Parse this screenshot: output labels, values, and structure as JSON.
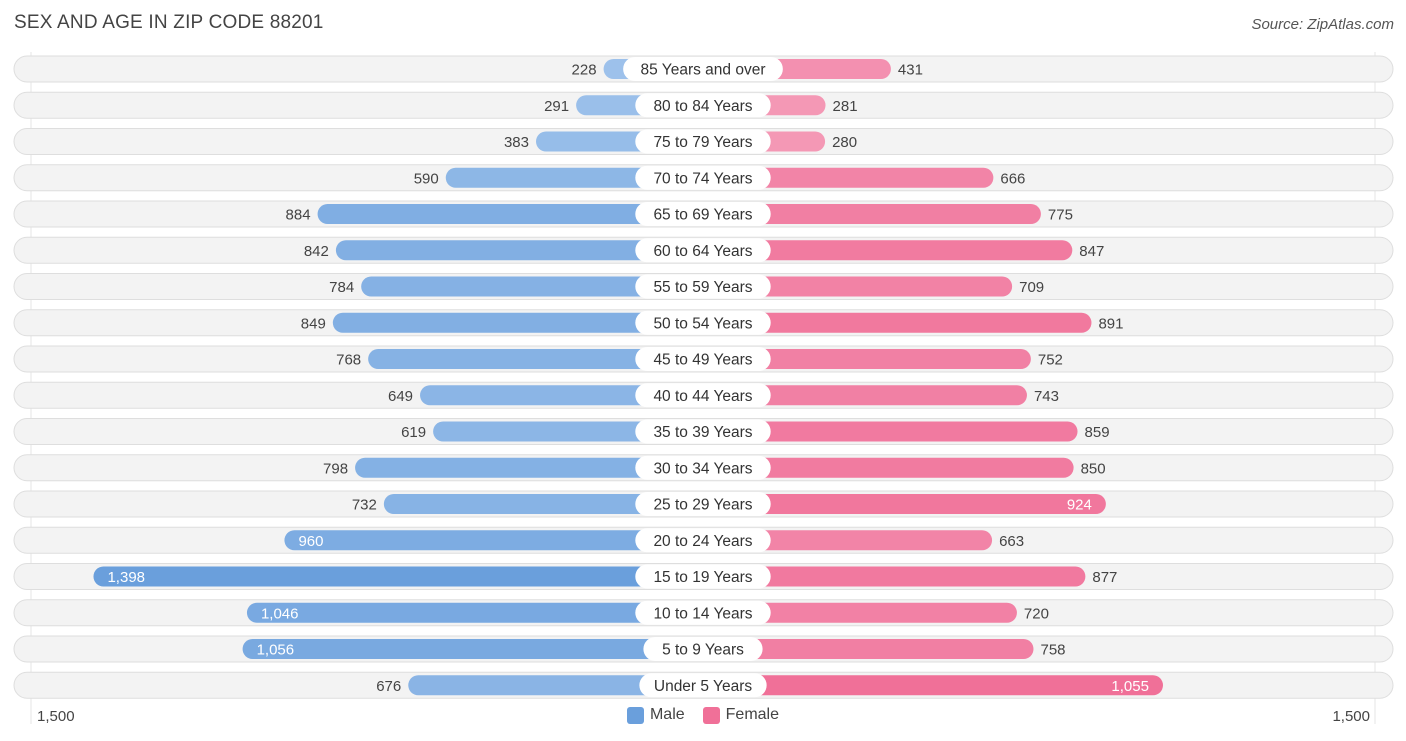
{
  "title": "SEX AND AGE IN ZIP CODE 88201",
  "source": "Source: ZipAtlas.com",
  "colors": {
    "male": "#6a9fdc",
    "male_light": "#a7c8ee",
    "female": "#f07098",
    "female_light": "#f5a6c0"
  },
  "axis": {
    "left_label": "1,500",
    "right_label": "1,500"
  },
  "legend": {
    "male": "Male",
    "female": "Female"
  },
  "chart_data": {
    "type": "bar",
    "orientation": "horizontal-diverging",
    "title": "SEX AND AGE IN ZIP CODE 88201",
    "xlim": [
      -1500,
      1500
    ],
    "categories": [
      "85 Years and over",
      "80 to 84 Years",
      "75 to 79 Years",
      "70 to 74 Years",
      "65 to 69 Years",
      "60 to 64 Years",
      "55 to 59 Years",
      "50 to 54 Years",
      "45 to 49 Years",
      "40 to 44 Years",
      "35 to 39 Years",
      "30 to 34 Years",
      "25 to 29 Years",
      "20 to 24 Years",
      "15 to 19 Years",
      "10 to 14 Years",
      "5 to 9 Years",
      "Under 5 Years"
    ],
    "series": [
      {
        "name": "Male",
        "values": [
          228,
          291,
          383,
          590,
          884,
          842,
          784,
          849,
          768,
          649,
          619,
          798,
          732,
          960,
          1398,
          1046,
          1056,
          676
        ],
        "labels": [
          "228",
          "291",
          "383",
          "590",
          "884",
          "842",
          "784",
          "849",
          "768",
          "649",
          "619",
          "798",
          "732",
          "960",
          "1,398",
          "1,046",
          "1,056",
          "676"
        ]
      },
      {
        "name": "Female",
        "values": [
          431,
          281,
          280,
          666,
          775,
          847,
          709,
          891,
          752,
          743,
          859,
          850,
          924,
          663,
          877,
          720,
          758,
          1055
        ],
        "labels": [
          "431",
          "281",
          "280",
          "666",
          "775",
          "847",
          "709",
          "891",
          "752",
          "743",
          "859",
          "850",
          "924",
          "663",
          "877",
          "720",
          "758",
          "1,055"
        ]
      }
    ]
  }
}
